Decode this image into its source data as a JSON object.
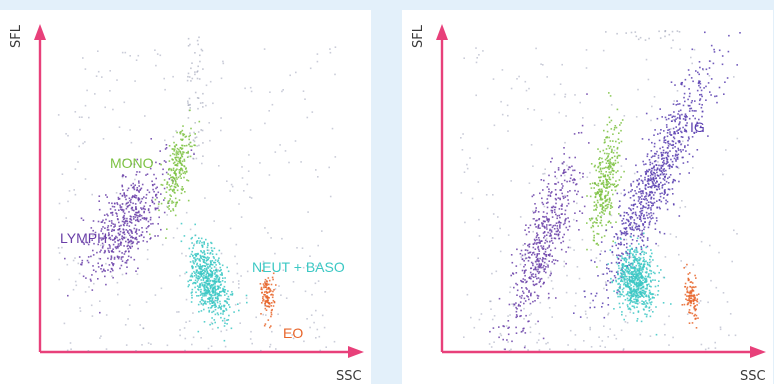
{
  "chart_data": [
    {
      "type": "scatter",
      "xlabel": "SSC",
      "ylabel": "SFL",
      "colors": {
        "axis": "#e8407a",
        "LYMPH": "#6a3fa8",
        "MONO": "#7cc242",
        "NEUT + BASO": "#3cc8c4",
        "EO": "#e8652a",
        "background_dots": "#8a8fa8"
      },
      "clusters": [
        {
          "name": "LYMPH",
          "label": "LYMPH",
          "cx": 0.27,
          "cy": 0.4,
          "spread_x": 0.045,
          "spread_y": 0.1,
          "angle_deg": 62,
          "count": 520
        },
        {
          "name": "MONO",
          "label": "MONO",
          "cx": 0.44,
          "cy": 0.57,
          "spread_x": 0.018,
          "spread_y": 0.07,
          "angle_deg": 78,
          "count": 230
        },
        {
          "name": "NEUT + BASO",
          "label": "NEUT + BASO",
          "cx": 0.54,
          "cy": 0.22,
          "spread_x": 0.06,
          "spread_y": 0.028,
          "angle_deg": 18,
          "count": 600
        },
        {
          "name": "EO",
          "label": "EO",
          "cx": 0.73,
          "cy": 0.17,
          "spread_x": 0.035,
          "spread_y": 0.012,
          "angle_deg": 8,
          "count": 110
        }
      ],
      "background_noise": {
        "count": 320
      },
      "tail": {
        "x_from": 0.47,
        "x_to": 0.52,
        "y_from": 0.6,
        "y_to": 0.98,
        "count": 60
      }
    },
    {
      "type": "scatter",
      "xlabel": "SSC",
      "ylabel": "SFL",
      "colors": {
        "axis": "#e8407a",
        "LYMPH": "#6a3fa8",
        "MONO": "#7cc242",
        "IG": "#5b3fb0",
        "NEUT": "#3cc8c4",
        "EO": "#e8652a",
        "background_dots": "#8a8fa8"
      },
      "clusters": [
        {
          "name": "LYMPH",
          "label": "",
          "cx": 0.32,
          "cy": 0.33,
          "spread_x": 0.035,
          "spread_y": 0.15,
          "angle_deg": 70,
          "count": 520
        },
        {
          "name": "MONO",
          "label": "",
          "cx": 0.52,
          "cy": 0.52,
          "spread_x": 0.02,
          "spread_y": 0.1,
          "angle_deg": 82,
          "count": 330
        },
        {
          "name": "IG",
          "label": "IG",
          "cx": 0.69,
          "cy": 0.55,
          "spread_x": 0.035,
          "spread_y": 0.2,
          "angle_deg": 64,
          "count": 820
        },
        {
          "name": "NEUT",
          "label": "",
          "cx": 0.62,
          "cy": 0.22,
          "spread_x": 0.05,
          "spread_y": 0.03,
          "angle_deg": 12,
          "count": 640
        },
        {
          "name": "EO",
          "label": "",
          "cx": 0.8,
          "cy": 0.17,
          "spread_x": 0.035,
          "spread_y": 0.012,
          "angle_deg": 8,
          "count": 110
        }
      ],
      "background_noise": {
        "count": 320
      },
      "tail": {
        "x_from": 0.52,
        "x_to": 0.78,
        "y_from": 0.97,
        "y_to": 1.0,
        "count": 20
      }
    }
  ]
}
